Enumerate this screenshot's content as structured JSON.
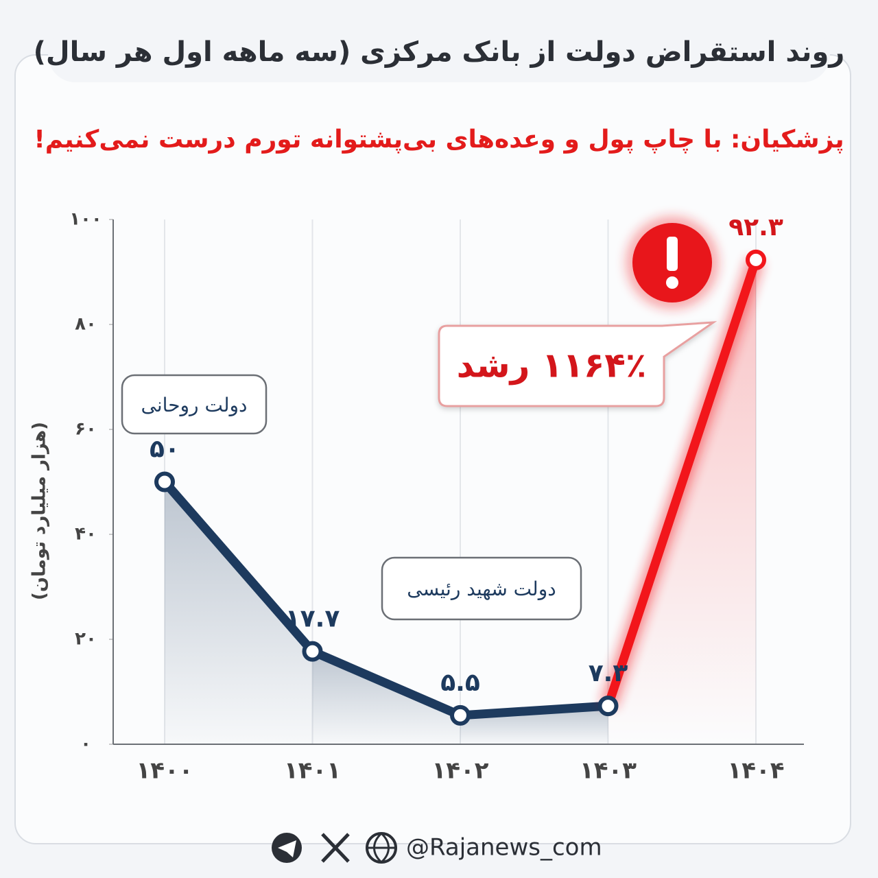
{
  "chart_data": {
    "type": "line",
    "title": "روند استقراض دولت از بانک مرکزی (سه ماهه اول هر سال)",
    "subtitle": "پزشکیان: با چاپ پول و وعده‌های بی‌پشتوانه تورم درست نمی‌کنیم!",
    "y_label": "(هزار میلیارد تومان)",
    "categories": [
      "۱۴۰۰",
      "۱۴۰۱",
      "۱۴۰۲",
      "۱۴۰۳",
      "۱۴۰۴"
    ],
    "series": [
      {
        "values": [
          50,
          17.7,
          5.5,
          7.3,
          92.3
        ],
        "value_labels": [
          "۵۰",
          "۱۷.۷",
          "۵.۵",
          "۷.۳",
          "۹۲.۳"
        ],
        "color": "#1d3a5e",
        "segment_colors": [
          "#1d3a5e",
          "#1d3a5e",
          "#1d3a5e",
          "#f2161b"
        ]
      }
    ],
    "ylim": [
      0,
      100
    ],
    "yticks": [
      {
        "value": 0,
        "label": "۰"
      },
      {
        "value": 20,
        "label": "۲۰"
      },
      {
        "value": 40,
        "label": "۴۰"
      },
      {
        "value": 60,
        "label": "۶۰"
      },
      {
        "value": 80,
        "label": "۸۰"
      },
      {
        "value": 100,
        "label": "۱۰۰"
      }
    ],
    "annotations": [
      "دولت روحانی",
      "دولت شهید رئیسی",
      "۱۱۶۴٪ رشد"
    ],
    "footer": "@Rajanews_com"
  }
}
